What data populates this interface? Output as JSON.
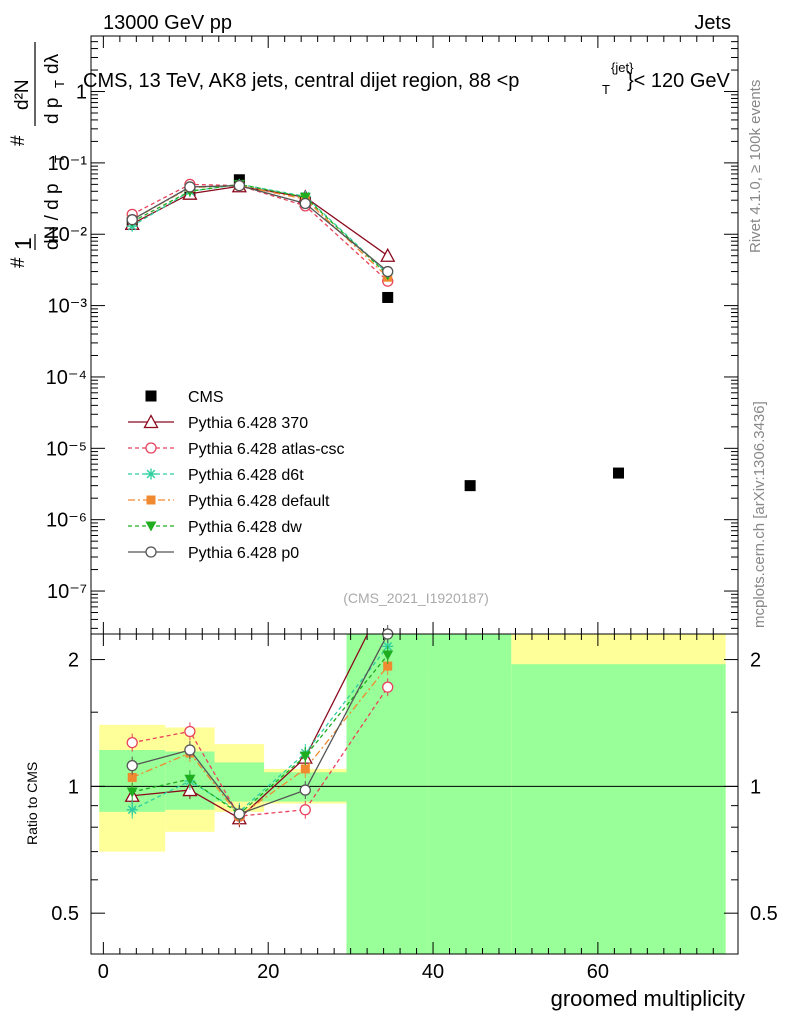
{
  "header": {
    "energy": "13000 GeV pp",
    "category": "Jets",
    "title_main": "CMS, 13 TeV, AK8 jets, central dijet region, 88 <p",
    "title_sup": "{jet}",
    "title_sub": "T",
    "title_end": "}< 120 GeV",
    "ylabel_top": "1",
    "ylabel_num": "d²N",
    "ylabel_den": "dN / d p",
    "ylabel_hash": "#",
    "ylabel_dptdl": "d p",
    "ylabel_T": "T",
    "ylabel_lambda": "dλ",
    "watermark": "(CMS_2021_I1920187)",
    "side_top": "Rivet 4.1.0, ≥ 100k events",
    "side_bottom": "mcplots.cern.ch [arXiv:1306.3436]",
    "ratio_ylabel": "Ratio to CMS",
    "xlabel": "groomed multiplicity"
  },
  "legend": [
    {
      "label": "CMS",
      "color": "#000000"
    },
    {
      "label": "Pythia 6.428 370",
      "color": "#8b0a1e"
    },
    {
      "label": "Pythia 6.428 atlas-csc",
      "color": "#e8425c"
    },
    {
      "label": "Pythia 6.428 d6t",
      "color": "#2fcfa0"
    },
    {
      "label": "Pythia 6.428 default",
      "color": "#f08a30"
    },
    {
      "label": "Pythia 6.428 dw",
      "color": "#1fad1f"
    },
    {
      "label": "Pythia 6.428 p0",
      "color": "#555555"
    }
  ],
  "chart_data": {
    "type": "scatter",
    "title": "CMS, 13 TeV, AK8 jets, central dijet region, 88 < pT < 120 GeV",
    "xlabel": "groomed multiplicity",
    "ylabel": "1/dN/dpT · d²N/dpT dλ",
    "xlim": [
      -1.5,
      77
    ],
    "ylim_main": [
      2.5e-08,
      6
    ],
    "ylim_ratio": [
      0.4,
      2.3
    ],
    "x_ticks": [
      "0",
      "20",
      "40",
      "60"
    ],
    "y_ticks_main": [
      "10⁻⁷",
      "10⁻⁶",
      "10⁻⁵",
      "10⁻⁴",
      "10⁻³",
      "10⁻²",
      "10⁻¹",
      "1"
    ],
    "y_ticks_ratio": [
      "0.5",
      "1",
      "2"
    ],
    "cms": {
      "x": [
        3.5,
        10.5,
        16.5,
        24.5,
        34.5,
        44.5,
        62.5
      ],
      "y": [
        0.0145,
        0.038,
        0.058,
        0.028,
        0.0013,
        3e-06,
        4.5e-06
      ],
      "band_edges": [
        -0.5,
        7.5,
        13.5,
        19.5,
        29.5,
        39.5,
        49.5,
        75.5
      ],
      "stat_lo": [
        0.87,
        0.88,
        0.92,
        0.92,
        0.4,
        0.4,
        0.4
      ],
      "stat_hi": [
        1.22,
        1.21,
        1.14,
        1.08,
        2.3,
        2.3,
        1.95
      ],
      "tot_lo": [
        0.7,
        0.78,
        0.87,
        0.91,
        0.4,
        0.4,
        0.4
      ],
      "tot_hi": [
        1.4,
        1.38,
        1.26,
        1.1,
        2.3,
        1.88,
        2.3
      ]
    },
    "series": [
      {
        "name": "Pythia 6.428 370",
        "marker": "triangle-open",
        "dash": "none",
        "x": [
          3.5,
          10.5,
          16.5,
          24.5,
          34.5
        ],
        "y": [
          0.014,
          0.037,
          0.047,
          0.033,
          0.005
        ],
        "ratio": [
          0.95,
          0.98,
          0.84,
          1.17,
          3.8
        ]
      },
      {
        "name": "Pythia 6.428 atlas-csc",
        "marker": "circle-open",
        "dash": "4,3",
        "x": [
          3.5,
          10.5,
          16.5,
          24.5,
          34.5
        ],
        "y": [
          0.019,
          0.05,
          0.048,
          0.025,
          0.0022
        ],
        "ratio": [
          1.27,
          1.35,
          0.85,
          0.88,
          1.72
        ]
      },
      {
        "name": "Pythia 6.428 d6t",
        "marker": "star",
        "dash": "4,3",
        "x": [
          3.5,
          10.5,
          16.5,
          24.5,
          34.5
        ],
        "y": [
          0.013,
          0.04,
          0.05,
          0.034,
          0.0028
        ],
        "ratio": [
          0.88,
          1.03,
          0.87,
          1.2,
          2.15
        ]
      },
      {
        "name": "Pythia 6.428 default",
        "marker": "square-filled",
        "dash": "7,3,2,3",
        "x": [
          3.5,
          10.5,
          16.5,
          24.5,
          34.5
        ],
        "y": [
          0.016,
          0.045,
          0.048,
          0.031,
          0.0025
        ],
        "ratio": [
          1.05,
          1.2,
          0.85,
          1.1,
          1.93
        ]
      },
      {
        "name": "Pythia 6.428 dw",
        "marker": "triangle-down-filled",
        "dash": "4,3",
        "x": [
          3.5,
          10.5,
          16.5,
          24.5,
          34.5
        ],
        "y": [
          0.015,
          0.04,
          0.05,
          0.033,
          0.0027
        ],
        "ratio": [
          0.97,
          1.04,
          0.86,
          1.18,
          2.05
        ]
      },
      {
        "name": "Pythia 6.428 p0",
        "marker": "circle-open",
        "dash": "none",
        "x": [
          3.5,
          10.5,
          16.5,
          24.5,
          34.5
        ],
        "y": [
          0.016,
          0.046,
          0.048,
          0.027,
          0.003
        ],
        "ratio": [
          1.12,
          1.22,
          0.86,
          0.98,
          2.3
        ]
      }
    ]
  }
}
